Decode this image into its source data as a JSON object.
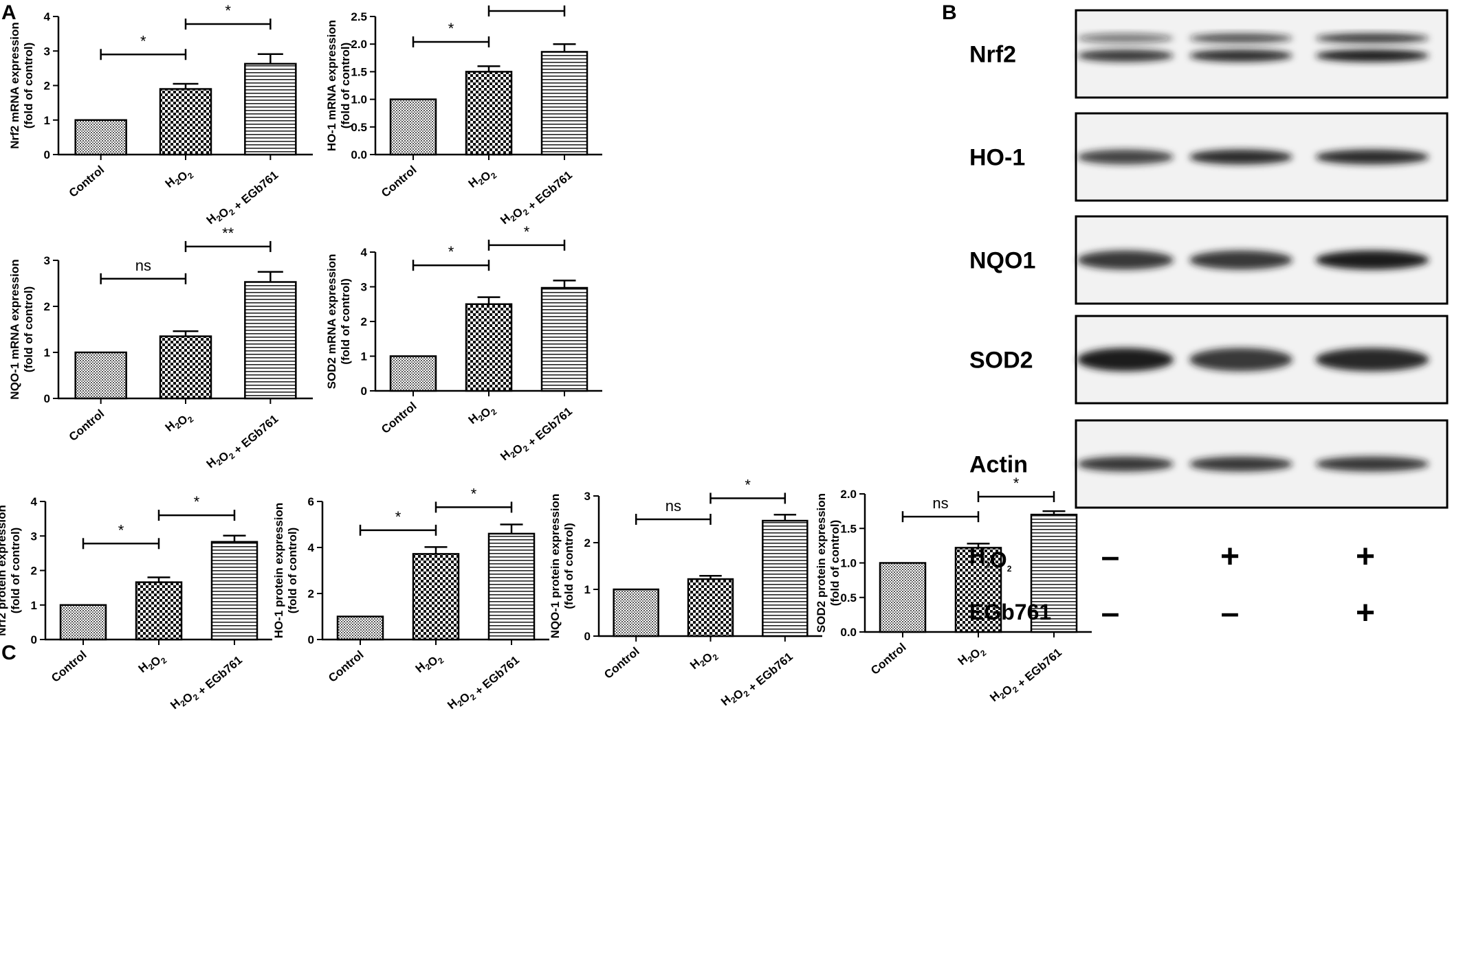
{
  "panels": {
    "A": "A",
    "B": "B",
    "C": "C"
  },
  "colors": {
    "ink": "#000000",
    "background": "#ffffff",
    "blot_background": "#f2f2f2",
    "band": "#1a1a1a"
  },
  "chart_data": [
    {
      "type": "bar",
      "panel": "A",
      "categories": [
        "Control",
        "H2O2",
        "H2O2 + EGb761"
      ],
      "values": [
        1.0,
        1.9,
        2.63
      ],
      "errors": [
        0,
        0.15,
        0.28
      ],
      "ylabel": [
        "Nrf2 mRNA expression",
        "(fold of control)"
      ],
      "xlabel": "",
      "ylim": [
        0,
        4
      ],
      "yticks": [
        "0",
        "1",
        "2",
        "3",
        "4"
      ],
      "significance": [
        {
          "from": 0,
          "to": 1,
          "label": "*",
          "y": 2.9
        },
        {
          "from": 1,
          "to": 2,
          "label": "*",
          "y": 3.78
        }
      ]
    },
    {
      "type": "bar",
      "panel": "A",
      "categories": [
        "Control",
        "H2O2",
        "H2O2 + EGb761"
      ],
      "values": [
        1.0,
        1.5,
        1.86
      ],
      "errors": [
        0,
        0.1,
        0.14
      ],
      "ylabel": [
        "HO-1 mRNA expression",
        "(fold of control)"
      ],
      "xlabel": "",
      "ylim": [
        0,
        2.5
      ],
      "yticks": [
        "0.0",
        "0.5",
        "1.0",
        "1.5",
        "2.0",
        "2.5"
      ],
      "significance": [
        {
          "from": 0,
          "to": 1,
          "label": "*",
          "y": 2.04
        },
        {
          "from": 1,
          "to": 2,
          "label": "**",
          "y": 2.6
        }
      ]
    },
    {
      "type": "bar",
      "panel": "A",
      "categories": [
        "Control",
        "H2O2",
        "H2O2 + EGb761"
      ],
      "values": [
        1.0,
        1.35,
        2.53
      ],
      "errors": [
        0,
        0.11,
        0.22
      ],
      "ylabel": [
        "NQO-1 mRNA expression",
        "(fold of control)"
      ],
      "xlabel": "",
      "ylim": [
        0,
        3
      ],
      "yticks": [
        "0",
        "1",
        "2",
        "3"
      ],
      "significance": [
        {
          "from": 0,
          "to": 1,
          "label": "ns",
          "y": 2.6
        },
        {
          "from": 1,
          "to": 2,
          "label": "**",
          "y": 3.3
        }
      ]
    },
    {
      "type": "bar",
      "panel": "A",
      "categories": [
        "Control",
        "H2O2",
        "H2O2 + EGb761"
      ],
      "values": [
        1.0,
        2.5,
        2.97
      ],
      "errors": [
        0,
        0.2,
        0.21
      ],
      "ylabel": [
        "SOD2 mRNA expression",
        "(fold of control)"
      ],
      "xlabel": "",
      "ylim": [
        0,
        4
      ],
      "yticks": [
        "0",
        "1",
        "2",
        "3",
        "4"
      ],
      "significance": [
        {
          "from": 0,
          "to": 1,
          "label": "*",
          "y": 3.62
        },
        {
          "from": 1,
          "to": 2,
          "label": "*",
          "y": 4.2
        }
      ]
    },
    {
      "type": "bar",
      "panel": "C",
      "categories": [
        "Control",
        "H2O2",
        "H2O2 + EGb761"
      ],
      "values": [
        1.0,
        1.66,
        2.83
      ],
      "errors": [
        0,
        0.14,
        0.18
      ],
      "ylabel": [
        "Nrf2 protein expression",
        "(fold of control)"
      ],
      "xlabel": "",
      "ylim": [
        0,
        4
      ],
      "yticks": [
        "0",
        "1",
        "2",
        "3",
        "4"
      ],
      "significance": [
        {
          "from": 0,
          "to": 1,
          "label": "*",
          "y": 2.78
        },
        {
          "from": 1,
          "to": 2,
          "label": "*",
          "y": 3.6
        }
      ]
    },
    {
      "type": "bar",
      "panel": "C",
      "categories": [
        "Control",
        "H2O2",
        "H2O2 + EGb761"
      ],
      "values": [
        1.0,
        3.72,
        4.6
      ],
      "errors": [
        0,
        0.3,
        0.4
      ],
      "ylabel": [
        "HO-1 protein expression",
        "(fold of control)"
      ],
      "xlabel": "",
      "ylim": [
        0,
        6
      ],
      "yticks": [
        "0",
        "2",
        "4",
        "6"
      ],
      "significance": [
        {
          "from": 0,
          "to": 1,
          "label": "*",
          "y": 4.75
        },
        {
          "from": 1,
          "to": 2,
          "label": "*",
          "y": 5.75
        }
      ]
    },
    {
      "type": "bar",
      "panel": "C",
      "categories": [
        "Control",
        "H2O2",
        "H2O2 + EGb761"
      ],
      "values": [
        1.0,
        1.22,
        2.47
      ],
      "errors": [
        0,
        0.07,
        0.13
      ],
      "ylabel": [
        "NQO-1 protein expression",
        "(fold of control)"
      ],
      "xlabel": "",
      "ylim": [
        0,
        3
      ],
      "yticks": [
        "0",
        "1",
        "2",
        "3"
      ],
      "significance": [
        {
          "from": 0,
          "to": 1,
          "label": "ns",
          "y": 2.5
        },
        {
          "from": 1,
          "to": 2,
          "label": "*",
          "y": 2.95
        }
      ]
    },
    {
      "type": "bar",
      "panel": "C",
      "categories": [
        "Control",
        "H2O2",
        "H2O2 + EGb761"
      ],
      "values": [
        1.0,
        1.22,
        1.7
      ],
      "errors": [
        0,
        0.06,
        0.05
      ],
      "ylabel": [
        "SOD2 protein expression",
        "(fold of control)"
      ],
      "xlabel": "",
      "ylim": [
        0,
        2.0
      ],
      "yticks": [
        "0.0",
        "0.5",
        "1.0",
        "1.5",
        "2.0"
      ],
      "significance": [
        {
          "from": 0,
          "to": 1,
          "label": "ns",
          "y": 1.67
        },
        {
          "from": 1,
          "to": 2,
          "label": "*",
          "y": 1.96
        }
      ]
    }
  ],
  "blot": {
    "proteins": [
      "Nrf2",
      "HO-1",
      "NQO1",
      "SOD2",
      "Actin"
    ],
    "treatments": [
      {
        "label": "H2O2",
        "signs": [
          "–",
          "+",
          "+"
        ]
      },
      {
        "label": "EGb761",
        "signs": [
          "–",
          "–",
          "+"
        ]
      }
    ]
  }
}
